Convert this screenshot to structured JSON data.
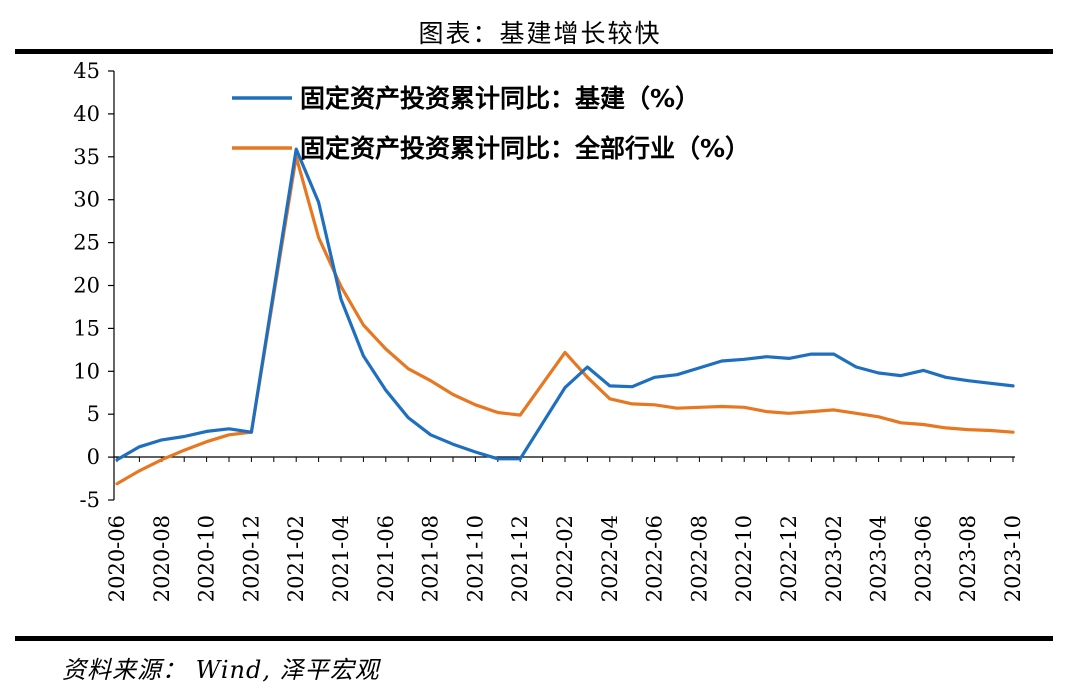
{
  "page": {
    "title": "图表：基建增长较快",
    "source": "资料来源： Wind, 泽平宏观"
  },
  "chart_data": {
    "type": "line",
    "title": "图表：基建增长较快",
    "xlabel": "",
    "ylabel": "",
    "ylim": [
      -5,
      45
    ],
    "yticks": [
      -5,
      0,
      5,
      10,
      15,
      20,
      25,
      30,
      35,
      40,
      45
    ],
    "ytick_labels": [
      "-5",
      "0",
      "5",
      "10",
      "15",
      "20",
      "25",
      "30",
      "35",
      "40",
      "45"
    ],
    "xtick_labels": [
      "2020-06",
      "2020-08",
      "2020-10",
      "2020-12",
      "2021-02",
      "2021-04",
      "2021-06",
      "2021-08",
      "2021-10",
      "2021-12",
      "2022-02",
      "2022-04",
      "2022-06",
      "2022-08",
      "2022-10",
      "2022-12",
      "2023-02",
      "2023-04",
      "2023-06",
      "2023-08",
      "2023-10"
    ],
    "x": [
      "2020-06",
      "2020-07",
      "2020-08",
      "2020-09",
      "2020-10",
      "2020-11",
      "2020-12",
      "2021-02",
      "2021-03",
      "2021-04",
      "2021-05",
      "2021-06",
      "2021-07",
      "2021-08",
      "2021-09",
      "2021-10",
      "2021-11",
      "2021-12",
      "2022-02",
      "2022-03",
      "2022-04",
      "2022-05",
      "2022-06",
      "2022-07",
      "2022-08",
      "2022-09",
      "2022-10",
      "2022-11",
      "2022-12",
      "2023-01",
      "2023-02",
      "2023-03",
      "2023-04",
      "2023-05",
      "2023-06",
      "2023-07",
      "2023-08",
      "2023-09",
      "2023-10"
    ],
    "grid": false,
    "legend_position": "top-center",
    "series": [
      {
        "name": "固定资产投资累计同比：基建（%）",
        "color": "#1f6fc0",
        "values": [
          -0.3,
          1.2,
          2.0,
          2.4,
          3.0,
          3.3,
          2.9,
          35.9,
          29.7,
          18.4,
          11.8,
          7.8,
          4.6,
          2.6,
          1.5,
          0.6,
          -0.2,
          -0.2,
          8.1,
          10.5,
          8.3,
          8.2,
          9.3,
          9.6,
          10.4,
          11.2,
          11.4,
          11.7,
          11.5,
          12.0,
          12.0,
          10.5,
          9.8,
          9.5,
          10.1,
          9.3,
          8.9,
          8.6,
          8.3
        ]
      },
      {
        "name": "固定资产投资累计同比：全部行业（%）",
        "color": "#e87722",
        "values": [
          -3.1,
          -1.6,
          -0.3,
          0.8,
          1.8,
          2.6,
          2.9,
          35.0,
          25.6,
          19.9,
          15.4,
          12.6,
          10.3,
          8.9,
          7.3,
          6.1,
          5.2,
          4.9,
          12.2,
          9.3,
          6.8,
          6.2,
          6.1,
          5.7,
          5.8,
          5.9,
          5.8,
          5.3,
          5.1,
          5.3,
          5.5,
          5.1,
          4.7,
          4.0,
          3.8,
          3.4,
          3.2,
          3.1,
          2.9
        ]
      }
    ]
  }
}
